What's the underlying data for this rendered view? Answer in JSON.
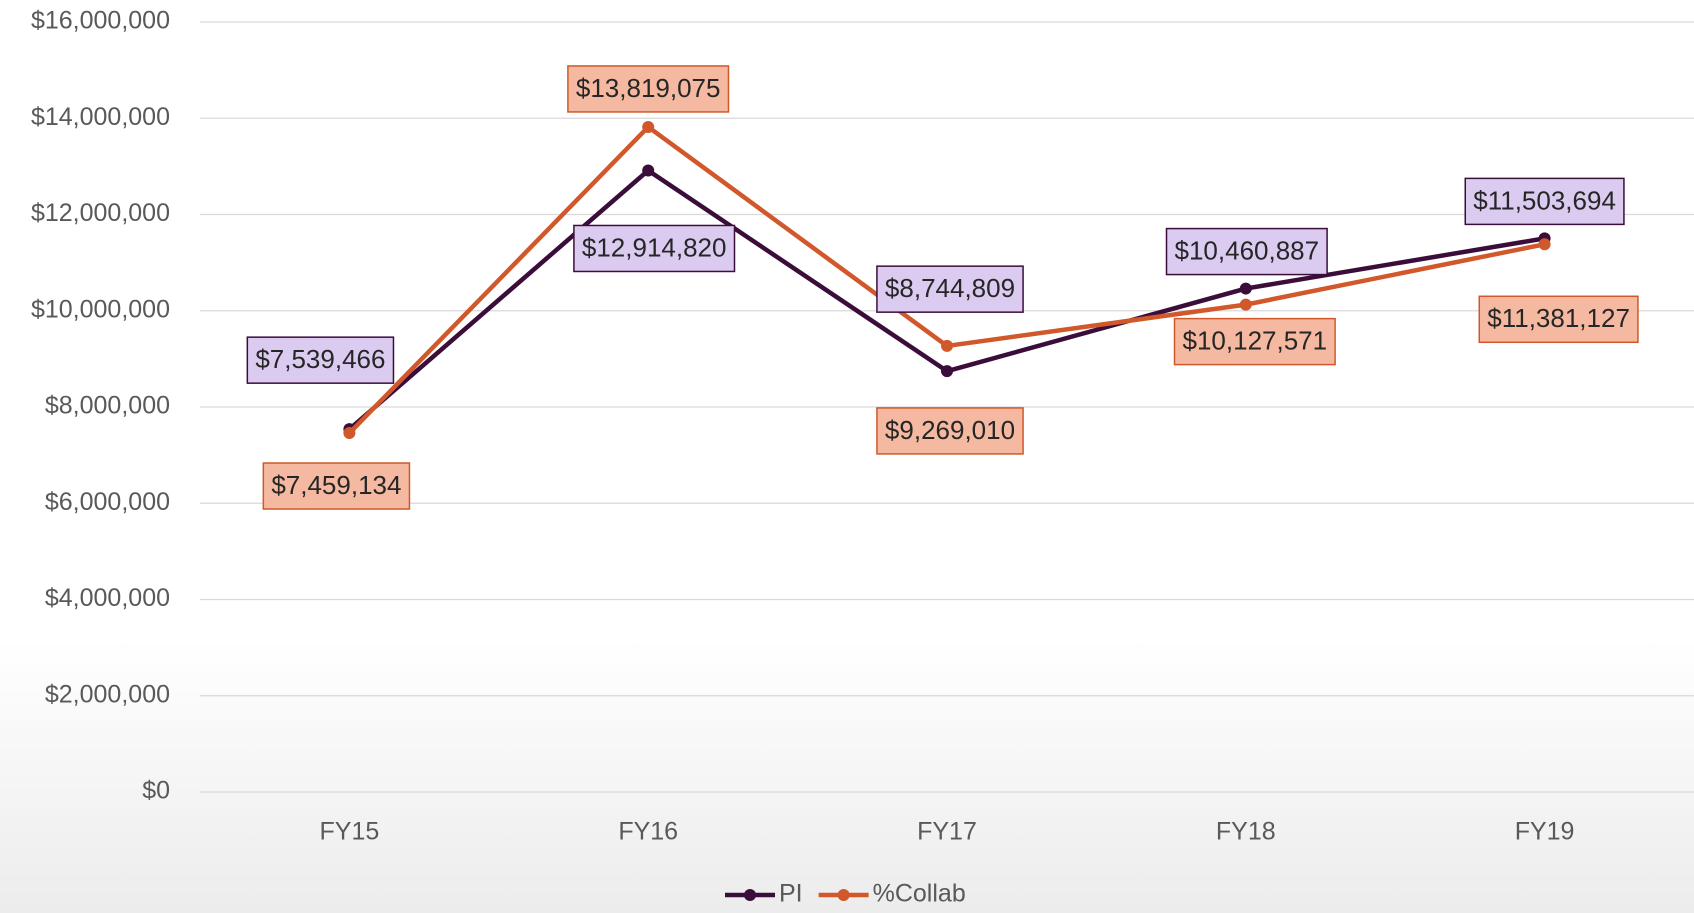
{
  "chart_data": {
    "type": "line",
    "categories": [
      "FY15",
      "FY16",
      "FY17",
      "FY18",
      "FY19"
    ],
    "series": [
      {
        "name": "PI",
        "color": "#3b0d3a",
        "label_fill": "#dccbf0",
        "values": [
          7539466,
          12914820,
          8744809,
          10460887,
          11503694
        ],
        "value_labels": [
          "$7,539,466",
          "$12,914,820",
          "$8,744,809",
          "$10,460,887",
          "$11,503,694"
        ]
      },
      {
        "name": "%Collab",
        "color": "#d0582a",
        "label_fill": "#f4b9a0",
        "values": [
          7459134,
          13819075,
          9269010,
          10127571,
          11381127
        ],
        "value_labels": [
          "$7,459,134",
          "$13,819,075",
          "$9,269,010",
          "$10,127,571",
          "$11,381,127"
        ]
      }
    ],
    "ylim": [
      0,
      16000000
    ],
    "yticks": [
      {
        "value": 0,
        "label": "$0"
      },
      {
        "value": 2000000,
        "label": "$2,000,000"
      },
      {
        "value": 4000000,
        "label": "$4,000,000"
      },
      {
        "value": 6000000,
        "label": "$6,000,000"
      },
      {
        "value": 8000000,
        "label": "$8,000,000"
      },
      {
        "value": 10000000,
        "label": "$10,000,000"
      },
      {
        "value": 12000000,
        "label": "$12,000,000"
      },
      {
        "value": 14000000,
        "label": "$14,000,000"
      },
      {
        "value": 16000000,
        "label": "$16,000,000"
      }
    ],
    "grid": true,
    "legend": "bottom"
  }
}
